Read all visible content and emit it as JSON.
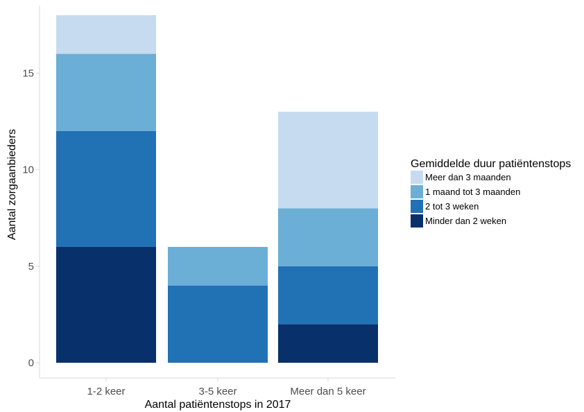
{
  "chart_data": {
    "type": "bar",
    "stacked": true,
    "xlabel": "Aantal patiëntenstops in 2017",
    "ylabel": "Aantal zorgaanbieders",
    "categories": [
      "1-2 keer",
      "3-5 keer",
      "Meer dan 5 keer"
    ],
    "ylim": [
      0,
      18.5
    ],
    "yticks": [
      0,
      5,
      10,
      15
    ],
    "series": [
      {
        "name": "Minder dan 2 weken",
        "color": "#08306b",
        "values": [
          6,
          0,
          2
        ]
      },
      {
        "name": "2 tot 3 weken",
        "color": "#2171b5",
        "values": [
          6,
          4,
          3
        ]
      },
      {
        "name": "1 maand tot 3 maanden",
        "color": "#6baed6",
        "values": [
          4,
          2,
          3
        ]
      },
      {
        "name": "Meer dan 3 maanden",
        "color": "#c6dbef",
        "values": [
          2,
          0,
          5
        ]
      }
    ],
    "legend": {
      "title": "Gemiddelde duur patiëntenstops",
      "position": "right",
      "order": [
        "Meer dan 3 maanden",
        "1 maand tot 3 maanden",
        "2 tot 3 weken",
        "Minder dan 2 weken"
      ]
    },
    "grid": false
  }
}
